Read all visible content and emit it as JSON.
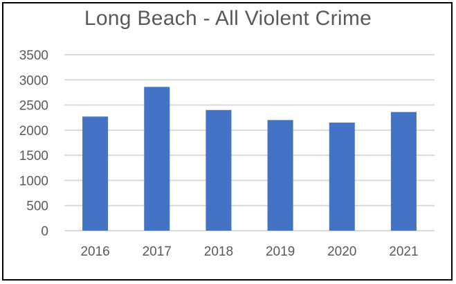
{
  "chart_data": {
    "type": "bar",
    "title": "Long Beach - All Violent Crime",
    "xlabel": "",
    "ylabel": "",
    "categories": [
      "2016",
      "2017",
      "2018",
      "2019",
      "2020",
      "2021"
    ],
    "values": [
      2270,
      2860,
      2400,
      2200,
      2150,
      2360
    ],
    "ylim": [
      0,
      3500
    ],
    "yticks": [
      "0",
      "500",
      "1000",
      "1500",
      "2000",
      "2500",
      "3000",
      "3500"
    ],
    "grid": true,
    "legend": "none",
    "colors": {
      "bar": "#4472C4",
      "grid": "#D9D9D9",
      "text": "#595959",
      "border": "#000000"
    }
  }
}
